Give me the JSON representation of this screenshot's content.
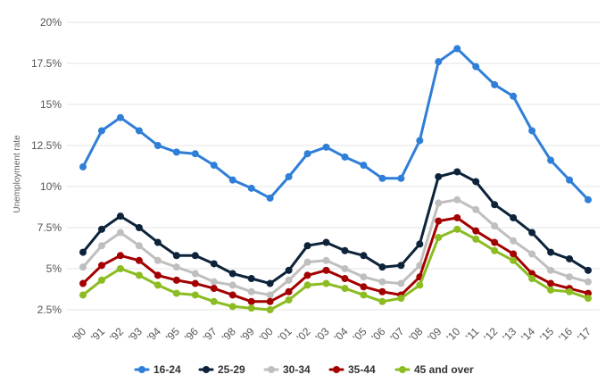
{
  "chart_data": {
    "type": "line",
    "ylabel": "Unemployment rate",
    "ylim": [
      2.5,
      20
    ],
    "y_ticks": [
      "2.5%",
      "5%",
      "7.5%",
      "10%",
      "12.5%",
      "15%",
      "17.5%",
      "20%"
    ],
    "y_tick_values": [
      2.5,
      5,
      7.5,
      10,
      12.5,
      15,
      17.5,
      20
    ],
    "categories": [
      "'90",
      "'91",
      "'92",
      "'93",
      "'94",
      "'95",
      "'96",
      "'97",
      "'98",
      "'99",
      "'00",
      "'01",
      "'02",
      "'03",
      "'04",
      "'05",
      "'06",
      "'07",
      "'08",
      "'09",
      "'10",
      "'11",
      "'12",
      "'13",
      "'14",
      "'15",
      "'16",
      "'17"
    ],
    "grid": "horizontal",
    "legend_position": "bottom",
    "series": [
      {
        "name": "16-24",
        "color": "#2f7ed8",
        "values": [
          11.2,
          13.4,
          14.2,
          13.4,
          12.5,
          12.1,
          12.0,
          11.3,
          10.4,
          9.9,
          9.3,
          10.6,
          12.0,
          12.4,
          11.8,
          11.3,
          10.5,
          10.5,
          12.8,
          17.6,
          18.4,
          17.3,
          16.2,
          15.5,
          13.4,
          11.6,
          10.4,
          9.2
        ]
      },
      {
        "name": "25-29",
        "color": "#0d233a",
        "values": [
          6.0,
          7.4,
          8.2,
          7.5,
          6.6,
          5.8,
          5.8,
          5.3,
          4.7,
          4.4,
          4.1,
          4.9,
          6.4,
          6.6,
          6.1,
          5.8,
          5.1,
          5.2,
          6.5,
          10.6,
          10.9,
          10.3,
          8.9,
          8.1,
          7.2,
          6.0,
          5.6,
          4.9
        ]
      },
      {
        "name": "30-34",
        "color": "#bfbfbf",
        "values": [
          5.1,
          6.4,
          7.2,
          6.4,
          5.5,
          5.1,
          4.7,
          4.2,
          4.0,
          3.6,
          3.4,
          4.3,
          5.4,
          5.5,
          5.0,
          4.5,
          4.2,
          4.1,
          5.2,
          9.0,
          9.2,
          8.6,
          7.6,
          6.7,
          5.9,
          4.9,
          4.5,
          4.2
        ]
      },
      {
        "name": "35-44",
        "color": "#a30000",
        "values": [
          4.1,
          5.2,
          5.8,
          5.5,
          4.6,
          4.3,
          4.1,
          3.8,
          3.4,
          3.0,
          3.0,
          3.6,
          4.6,
          4.9,
          4.4,
          3.9,
          3.6,
          3.4,
          4.5,
          7.9,
          8.1,
          7.3,
          6.6,
          5.9,
          4.7,
          4.1,
          3.8,
          3.5
        ]
      },
      {
        "name": "45 and over",
        "color": "#8bbc21",
        "values": [
          3.4,
          4.3,
          5.0,
          4.6,
          4.0,
          3.5,
          3.4,
          3.0,
          2.7,
          2.6,
          2.5,
          3.1,
          4.0,
          4.1,
          3.8,
          3.4,
          3.0,
          3.2,
          4.0,
          6.9,
          7.4,
          6.8,
          6.1,
          5.5,
          4.4,
          3.7,
          3.6,
          3.2
        ]
      }
    ]
  }
}
